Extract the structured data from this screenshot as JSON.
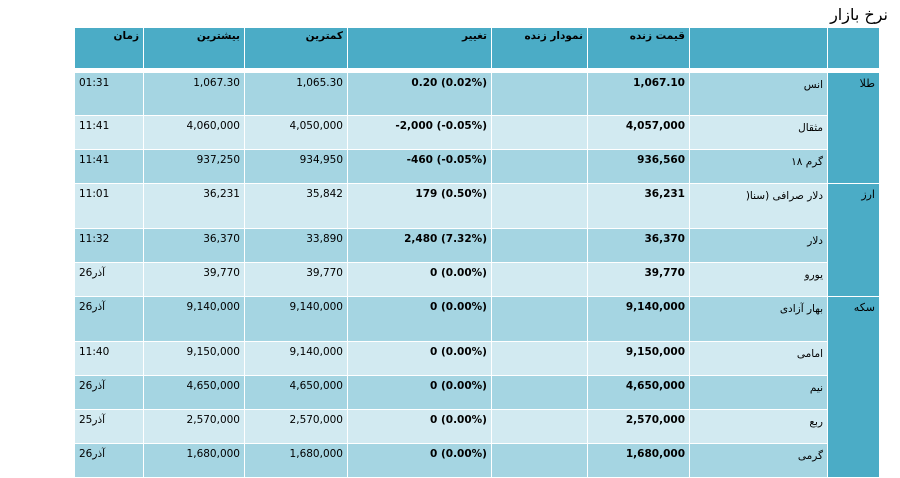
{
  "page_title": "نرخ بازار",
  "columns": {
    "time": "زمان",
    "high": "بیشترین",
    "low": "کمترین",
    "change": "تغییر",
    "live_chart": "نمودار زنده",
    "live_price": "قیمت زنده",
    "item": "",
    "group": ""
  },
  "groups": [
    {
      "label": "طلا",
      "rows": [
        {
          "time": "01:31",
          "high": "1,067.30",
          "low": "1,065.30",
          "change": "0.20 (0.02%)",
          "chart": "",
          "price": "1,067.10",
          "name": "انس"
        },
        {
          "time": "11:41",
          "high": "4,060,000",
          "low": "4,050,000",
          "change": "-2,000 (-0.05%)",
          "chart": "",
          "price": "4,057,000",
          "name": "مثقال"
        },
        {
          "time": "11:41",
          "high": "937,250",
          "low": "934,950",
          "change": "-460 (-0.05%)",
          "chart": "",
          "price": "936,560",
          "name": "گرم ۱۸"
        }
      ]
    },
    {
      "label": "ارز",
      "rows": [
        {
          "time": "11:01",
          "high": "36,231",
          "low": "35,842",
          "change": "179 (0.50%)",
          "chart": "",
          "price": "36,231",
          "name": "دلار صرافی (سنا("
        },
        {
          "time": "11:32",
          "high": "36,370",
          "low": "33,890",
          "change": "2,480 (7.32%)",
          "chart": "",
          "price": "36,370",
          "name": "دلار"
        },
        {
          "time": "26آذر",
          "high": "39,770",
          "low": "39,770",
          "change": "0 (0.00%)",
          "chart": "",
          "price": "39,770",
          "name": "یورو"
        }
      ]
    },
    {
      "label": "سکه",
      "rows": [
        {
          "time": "26آذر",
          "high": "9,140,000",
          "low": "9,140,000",
          "change": "0 (0.00%)",
          "chart": "",
          "price": "9,140,000",
          "name": "بهار آزادی"
        },
        {
          "time": "11:40",
          "high": "9,150,000",
          "low": "9,140,000",
          "change": "0 (0.00%)",
          "chart": "",
          "price": "9,150,000",
          "name": "امامی"
        },
        {
          "time": "26آذر",
          "high": "4,650,000",
          "low": "4,650,000",
          "change": "0 (0.00%)",
          "chart": "",
          "price": "4,650,000",
          "name": "نیم"
        },
        {
          "time": "25آذر",
          "high": "2,570,000",
          "low": "2,570,000",
          "change": "0 (0.00%)",
          "chart": "",
          "price": "2,570,000",
          "name": "ربع"
        },
        {
          "time": "26آذر",
          "high": "1,680,000",
          "low": "1,680,000",
          "change": "0 (0.00%)",
          "chart": "",
          "price": "1,680,000",
          "name": "گرمی"
        }
      ]
    }
  ],
  "colors": {
    "header": "#4bacc6",
    "row_dark": "#a5d5e2",
    "row_light": "#d2eaf1"
  }
}
